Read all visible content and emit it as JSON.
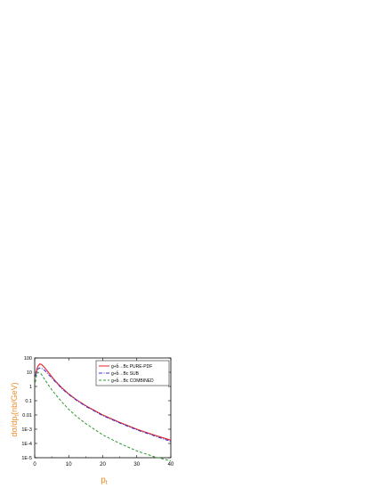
{
  "chart_data": {
    "type": "line",
    "xlabel": "p",
    "xlabel_sub": "t",
    "ylabel": "dσ/dp",
    "ylabel_sub": "t",
    "ylabel_unit": "(nb/GeV)",
    "xlim": [
      0,
      40
    ],
    "ylim_log10": [
      -5,
      2
    ],
    "y_scale": "log",
    "grid": false,
    "legend_position": "top-right",
    "x_ticks": [
      0,
      10,
      20,
      30,
      40
    ],
    "x_tick_labels": [
      "0",
      "10",
      "20",
      "30",
      "40"
    ],
    "y_ticks_log10": [
      2,
      1,
      0,
      -1,
      -2,
      -3,
      -4,
      -5
    ],
    "y_tick_labels": [
      "100",
      "10",
      "1",
      "0.1",
      "0.01",
      "1E-3",
      "1E-4",
      "1E-5"
    ],
    "series": [
      {
        "name": "g+b̄→Bc    PURE-PDF",
        "color": "#e8202a",
        "dash": "solid",
        "x": [
          0.2,
          0.6,
          1.0,
          1.5,
          2.0,
          3.0,
          4.0,
          5.0,
          6.0,
          8.0,
          10.0,
          12.0,
          15.0,
          20.0,
          25.0,
          30.0,
          35.0,
          40.0
        ],
        "y": [
          5.0,
          15.0,
          28.0,
          38.0,
          35.0,
          20.0,
          10.0,
          5.0,
          2.5,
          0.8,
          0.3,
          0.13,
          0.045,
          0.01,
          0.003,
          0.001,
          0.0004,
          0.00017
        ]
      },
      {
        "name": "g+b̄→Bc    SUB",
        "color": "#3333cc",
        "dash": "dash-dot",
        "x": [
          0.2,
          0.6,
          1.0,
          1.5,
          2.0,
          3.0,
          4.0,
          5.0,
          6.0,
          8.0,
          10.0,
          12.0,
          15.0,
          20.0,
          25.0,
          30.0,
          35.0,
          40.0
        ],
        "y": [
          5.0,
          11.0,
          17.0,
          20.0,
          19.0,
          13.0,
          7.0,
          4.0,
          2.2,
          0.7,
          0.27,
          0.12,
          0.04,
          0.009,
          0.0027,
          0.0009,
          0.00035,
          0.00014
        ]
      },
      {
        "name": "g+b̄→Bc    COMBINED",
        "color": "#2e9a2e",
        "dash": "dashed",
        "x": [
          0.2,
          0.6,
          1.0,
          1.5,
          2.0,
          3.0,
          4.0,
          5.0,
          6.0,
          8.0,
          10.0,
          12.0,
          15.0,
          20.0,
          25.0,
          30.0,
          35.0,
          40.0
        ],
        "y": [
          2.0,
          7.0,
          10.0,
          9.0,
          7.0,
          3.0,
          1.3,
          0.6,
          0.3,
          0.08,
          0.025,
          0.009,
          0.0025,
          0.0004,
          0.0001,
          3e-05,
          1.2e-05,
          6e-06
        ]
      }
    ]
  }
}
